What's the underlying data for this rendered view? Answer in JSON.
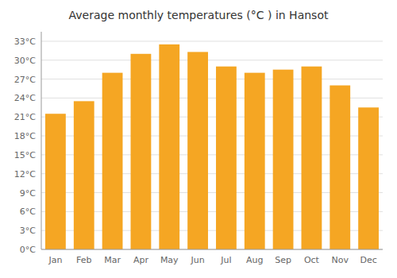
{
  "chart_data": {
    "type": "bar",
    "title": "Average monthly temperatures (°C ) in Hansot",
    "categories": [
      "Jan",
      "Feb",
      "Mar",
      "Apr",
      "May",
      "Jun",
      "Jul",
      "Aug",
      "Sep",
      "Oct",
      "Nov",
      "Dec"
    ],
    "values": [
      21.5,
      23.5,
      28.0,
      31.0,
      32.5,
      31.3,
      29.0,
      28.0,
      28.5,
      29.0,
      26.0,
      22.5
    ],
    "color": "#F5A623",
    "ylim": [
      0,
      34.5
    ],
    "yticks": [
      {
        "value": 0,
        "label": "0°C"
      },
      {
        "value": 3,
        "label": "3°C"
      },
      {
        "value": 6,
        "label": "6°C"
      },
      {
        "value": 9,
        "label": "9°C"
      },
      {
        "value": 12,
        "label": "12°C"
      },
      {
        "value": 15,
        "label": "15°C"
      },
      {
        "value": 18,
        "label": "18°C"
      },
      {
        "value": 21,
        "label": "21°C"
      },
      {
        "value": 24,
        "label": "24°C"
      },
      {
        "value": 27,
        "label": "27°C"
      },
      {
        "value": 30,
        "label": "30°C"
      },
      {
        "value": 33,
        "label": "33°C"
      }
    ],
    "grid": true
  }
}
